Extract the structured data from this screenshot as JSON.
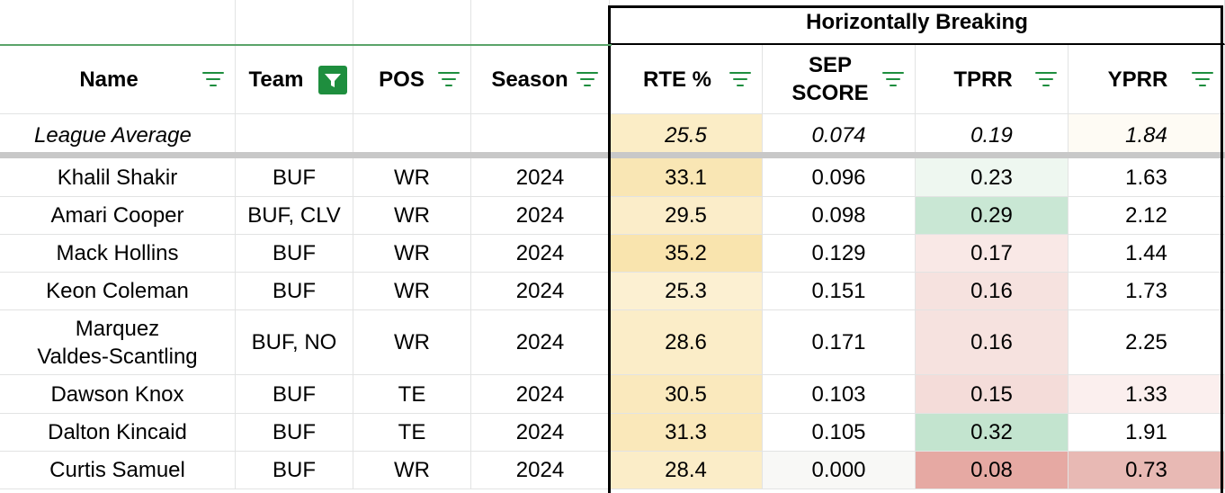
{
  "group_header": "Horizontally Breaking",
  "columns": [
    {
      "key": "name",
      "label": "Name"
    },
    {
      "key": "team",
      "label": "Team"
    },
    {
      "key": "pos",
      "label": "POS"
    },
    {
      "key": "season",
      "label": "Season"
    },
    {
      "key": "rte",
      "label": "RTE %"
    },
    {
      "key": "sep",
      "label": "SEP\nSCORE"
    },
    {
      "key": "tprr",
      "label": "TPRR"
    },
    {
      "key": "yprr",
      "label": "YPRR"
    }
  ],
  "league_average": {
    "label": "League Average",
    "rte": "25.5",
    "sep": "0.074",
    "tprr": "0.19",
    "yprr": "1.84"
  },
  "rows": [
    {
      "name": "Khalil Shakir",
      "team": "BUF",
      "pos": "WR",
      "season": "2024",
      "rte": "33.1",
      "sep": "0.096",
      "tprr": "0.23",
      "yprr": "1.63"
    },
    {
      "name": "Amari Cooper",
      "team": "BUF, CLV",
      "pos": "WR",
      "season": "2024",
      "rte": "29.5",
      "sep": "0.098",
      "tprr": "0.29",
      "yprr": "2.12"
    },
    {
      "name": "Mack Hollins",
      "team": "BUF",
      "pos": "WR",
      "season": "2024",
      "rte": "35.2",
      "sep": "0.129",
      "tprr": "0.17",
      "yprr": "1.44"
    },
    {
      "name": "Keon Coleman",
      "team": "BUF",
      "pos": "WR",
      "season": "2024",
      "rte": "25.3",
      "sep": "0.151",
      "tprr": "0.16",
      "yprr": "1.73"
    },
    {
      "name": "Marquez\nValdes-Scantling",
      "team": "BUF, NO",
      "pos": "WR",
      "season": "2024",
      "rte": "28.6",
      "sep": "0.171",
      "tprr": "0.16",
      "yprr": "2.25"
    },
    {
      "name": "Dawson Knox",
      "team": "BUF",
      "pos": "TE",
      "season": "2024",
      "rte": "30.5",
      "sep": "0.103",
      "tprr": "0.15",
      "yprr": "1.33"
    },
    {
      "name": "Dalton Kincaid",
      "team": "BUF",
      "pos": "TE",
      "season": "2024",
      "rte": "31.3",
      "sep": "0.105",
      "tprr": "0.32",
      "yprr": "1.91"
    },
    {
      "name": "Curtis Samuel",
      "team": "BUF",
      "pos": "WR",
      "season": "2024",
      "rte": "28.4",
      "sep": "0.000",
      "tprr": "0.08",
      "yprr": "0.73"
    }
  ],
  "colors": {
    "avg_rte": "#fbedc6",
    "avg_yprr": "#fefbf4",
    "rte": [
      "#f9e6b4",
      "#fbedc9",
      "#f9e4ae",
      "#fcf0d2",
      "#fbedc8",
      "#fae9bd",
      "#fae8ba",
      "#fbedc8"
    ],
    "sep": [
      "#ffffff",
      "#ffffff",
      "#ffffff",
      "#ffffff",
      "#ffffff",
      "#ffffff",
      "#ffffff",
      "#f8f8f6"
    ],
    "tprr": [
      "#eef7f0",
      "#c9e7d4",
      "#f9e8e6",
      "#f6e2df",
      "#f6e2df",
      "#f4dcd9",
      "#c3e4cf",
      "#e6a9a3"
    ],
    "yprr": [
      "#ffffff",
      "#ffffff",
      "#ffffff",
      "#ffffff",
      "#ffffff",
      "#fbefee",
      "#ffffff",
      "#e8b9b4"
    ],
    "filter_green": "#1e8e3e",
    "grid_green_line": "#5aa469"
  },
  "icons": {
    "filter": "filter-lines-icon",
    "filter_active": "funnel-active-icon"
  }
}
